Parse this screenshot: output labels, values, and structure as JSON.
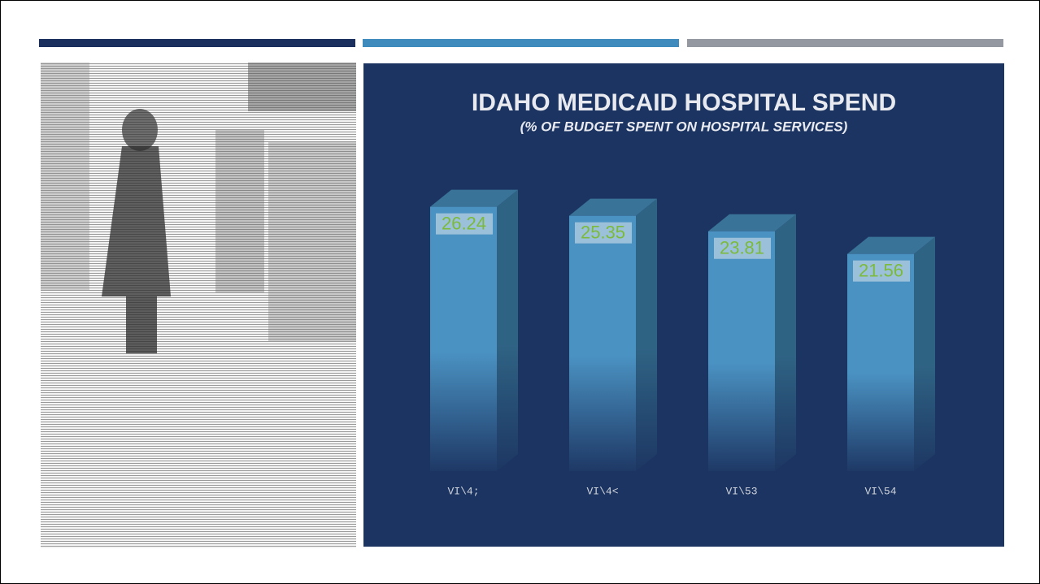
{
  "chart_data": {
    "type": "bar3d",
    "title": "IDAHO MEDICAID HOSPITAL SPEND",
    "subtitle": "(% OF BUDGET SPENT ON HOSPITAL SERVICES)",
    "categories": [
      "VI\\4;",
      "VI\\4<",
      "VI\\53",
      "VI\\54"
    ],
    "values": [
      26.24,
      25.35,
      23.81,
      21.56
    ],
    "color": "#4a92c2"
  }
}
